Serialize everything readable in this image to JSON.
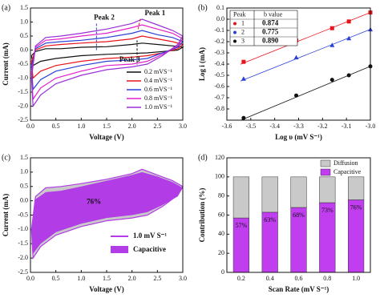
{
  "chart_data": [
    {
      "type": "line",
      "panel": "(a)",
      "xlabel": "Voltage (V)",
      "ylabel": "Current (mA)",
      "xlim": [
        0,
        3
      ],
      "xticks": [
        {
          "value": 0,
          "label": "0.0"
        },
        0.5,
        {
          "value": 1,
          "label": "1.0"
        },
        1.5,
        {
          "value": 2,
          "label": "2.0"
        },
        2.5,
        {
          "value": 3,
          "label": "3.0"
        }
      ],
      "ylim": [
        -2.5,
        1.5
      ],
      "yticks": [
        1.5,
        {
          "value": 1,
          "label": "1.0"
        },
        0.5,
        {
          "value": 0,
          "label": "0.0"
        },
        -0.5,
        {
          "value": -1,
          "label": "-1.0"
        },
        -1.5,
        {
          "value": -2,
          "label": "-2.0"
        },
        -2.5
      ],
      "x": [
        0.02,
        0.1,
        0.3,
        0.6,
        1.0,
        1.5,
        2.0,
        2.2,
        2.5,
        2.8,
        3.0,
        2.9,
        2.6,
        2.3,
        2.0,
        1.5,
        1.0,
        0.5,
        0.2,
        0.05,
        0.02
      ],
      "series": [
        {
          "name": "0.2 mVS⁻¹",
          "color": "#111111",
          "values": [
            -0.2,
            -0.05,
            0.05,
            0.05,
            0.1,
            0.12,
            0.2,
            0.25,
            0.2,
            0.15,
            0.1,
            0.0,
            -0.05,
            -0.1,
            -0.12,
            -0.15,
            -0.2,
            -0.3,
            -0.4,
            -0.55,
            -0.2
          ]
        },
        {
          "name": "0.4 mVS⁻¹",
          "color": "#e8141b",
          "values": [
            -0.4,
            0.0,
            0.15,
            0.2,
            0.25,
            0.3,
            0.4,
            0.5,
            0.4,
            0.3,
            0.2,
            0.05,
            -0.1,
            -0.2,
            -0.25,
            -0.3,
            -0.4,
            -0.55,
            -0.75,
            -1.0,
            -0.4
          ]
        },
        {
          "name": "0.6 mVS⁻¹",
          "color": "#2a3fd6",
          "values": [
            -0.6,
            0.05,
            0.25,
            0.3,
            0.35,
            0.45,
            0.6,
            0.7,
            0.55,
            0.45,
            0.3,
            0.1,
            -0.1,
            -0.3,
            -0.35,
            -0.4,
            -0.55,
            -0.75,
            -1.05,
            -1.4,
            -0.6
          ]
        },
        {
          "name": "0.8 mVS⁻¹",
          "color": "#e020c8",
          "values": [
            -0.8,
            0.1,
            0.35,
            0.4,
            0.5,
            0.6,
            0.8,
            0.9,
            0.75,
            0.6,
            0.4,
            0.15,
            -0.15,
            -0.4,
            -0.5,
            -0.55,
            -0.75,
            -1.0,
            -1.35,
            -1.75,
            -0.8
          ]
        },
        {
          "name": "1.0 mVS⁻¹",
          "color": "#9a2fd8",
          "values": [
            -1.0,
            0.15,
            0.45,
            0.5,
            0.6,
            0.75,
            0.95,
            1.1,
            0.9,
            0.7,
            0.5,
            0.2,
            -0.2,
            -0.5,
            -0.6,
            -0.7,
            -0.9,
            -1.2,
            -1.6,
            -2.0,
            -1.0
          ]
        }
      ],
      "annotations": [
        {
          "text": "Peak 1",
          "color": "#e8141b"
        },
        {
          "text": "Peak 2",
          "color": "#2a3fd6"
        },
        {
          "text": "Peak 3",
          "color": "#111111"
        }
      ]
    },
    {
      "type": "scatter",
      "panel": "(b)",
      "xlabel": "Log υ (mV S⁻¹)",
      "ylabel": "Log i (mA)",
      "xlim": [
        -3.6,
        -3.0
      ],
      "xticks": [
        {
          "value": -3.6,
          "label": "-3.6"
        },
        -3.5,
        -3.4,
        -3.3,
        -3.2,
        -3.1,
        {
          "value": -3,
          "label": "-3.0"
        }
      ],
      "ylim": [
        -0.9,
        0.1
      ],
      "yticks": [
        0.1,
        {
          "value": 0,
          "label": "0.0"
        },
        -0.1,
        -0.2,
        -0.3,
        -0.4,
        -0.5,
        -0.6,
        -0.7,
        -0.8
      ],
      "x": [
        -3.53,
        -3.31,
        -3.16,
        -3.09,
        -3.0
      ],
      "series": [
        {
          "name": "1",
          "color": "#e8141b",
          "marker": "square",
          "values": [
            -0.38,
            -0.19,
            -0.08,
            -0.02,
            0.06
          ]
        },
        {
          "name": "2",
          "color": "#2a3fd6",
          "marker": "triangle",
          "values": [
            -0.53,
            -0.34,
            -0.23,
            -0.17,
            -0.09
          ]
        },
        {
          "name": "3",
          "color": "#111111",
          "marker": "circle",
          "values": [
            -0.88,
            -0.68,
            -0.54,
            -0.5,
            -0.42
          ]
        }
      ],
      "table": {
        "header": [
          "Peak",
          "b value"
        ],
        "rows": [
          [
            "0.874"
          ],
          [
            "0.775"
          ],
          [
            "0.890"
          ]
        ]
      }
    },
    {
      "type": "area",
      "panel": "(c)",
      "xlabel": "Voltage (V)",
      "ylabel": "Current (mA)",
      "fill_color": "#c9c9c9",
      "xlim": [
        0,
        3
      ],
      "xticks": [
        {
          "value": 0,
          "label": "0.0"
        },
        0.5,
        {
          "value": 1,
          "label": "1.0"
        },
        1.5,
        {
          "value": 2,
          "label": "2.0"
        },
        2.5,
        {
          "value": 3,
          "label": "3.0"
        }
      ],
      "ylim": [
        -2.5,
        1.5
      ],
      "yticks": [
        1.5,
        {
          "value": 1,
          "label": "1.0"
        },
        0.5,
        {
          "value": 0,
          "label": "0.0"
        },
        -0.5,
        {
          "value": -1,
          "label": "-1.0"
        },
        -1.5,
        {
          "value": -2,
          "label": "-2.0"
        },
        -2.5
      ],
      "x": [
        0.02,
        0.1,
        0.3,
        0.6,
        1.0,
        1.5,
        2.0,
        2.2,
        2.5,
        2.8,
        3.0,
        2.9,
        2.6,
        2.3,
        2.0,
        1.5,
        1.0,
        0.5,
        0.2,
        0.05,
        0.02
      ],
      "series": [
        {
          "name": "1.0 mV S⁻¹",
          "color": "#b23ce6",
          "values": [
            -1.0,
            0.15,
            0.45,
            0.5,
            0.6,
            0.75,
            0.95,
            1.1,
            0.9,
            0.7,
            0.5,
            0.2,
            -0.2,
            -0.5,
            -0.6,
            -0.7,
            -0.9,
            -1.2,
            -1.6,
            -2.0,
            -1.0
          ]
        },
        {
          "name": "Capacitive",
          "color": "#b23ce6",
          "values": [
            -0.9,
            0.05,
            0.3,
            0.35,
            0.5,
            0.7,
            0.9,
            1.0,
            0.85,
            0.65,
            0.45,
            0.15,
            -0.15,
            -0.4,
            -0.5,
            -0.6,
            -0.8,
            -1.1,
            -1.5,
            -1.85,
            -0.9
          ]
        }
      ],
      "annotation": "76%"
    },
    {
      "type": "bar",
      "panel": "(d)",
      "xlabel": "Scan Rate (mV S⁻¹)",
      "ylabel": "Contribution (%)",
      "categories": [
        "0.2",
        "0.4",
        "0.6",
        "0.8",
        "1.0"
      ],
      "ylim": [
        0,
        120
      ],
      "yticks": [
        0,
        20,
        40,
        60,
        80,
        100,
        120
      ],
      "series": [
        {
          "name": "Capacitive",
          "color": "#c13ef0",
          "values": [
            57,
            63,
            68,
            73,
            76
          ],
          "value_labels": [
            "57%",
            "63%",
            "68%",
            "73%",
            "76%"
          ]
        },
        {
          "name": "Diffusion",
          "color": "#c9c9c9",
          "values": [
            43,
            37,
            32,
            27,
            24
          ]
        }
      ]
    }
  ]
}
